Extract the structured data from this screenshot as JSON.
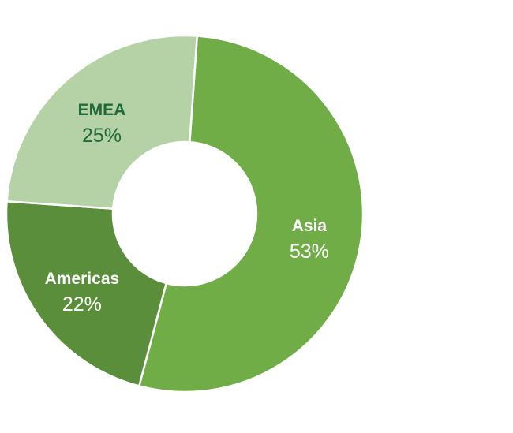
{
  "chart_data": {
    "type": "pie",
    "variant": "donut",
    "title": "",
    "legend": "none",
    "slices": [
      {
        "label": "Asia",
        "value": 53,
        "value_label": "53%",
        "color": "#70ad47",
        "label_color": "#ffffff"
      },
      {
        "label": "Americas",
        "value": 22,
        "value_label": "22%",
        "color": "#5b8e3a",
        "label_color": "#ffffff"
      },
      {
        "label": "EMEA",
        "value": 25,
        "value_label": "25%",
        "color": "#b5d2a6",
        "label_color": "#1f6a3a"
      }
    ]
  },
  "colors": {
    "background": "#ffffff",
    "slice_separator": "#ffffff"
  }
}
